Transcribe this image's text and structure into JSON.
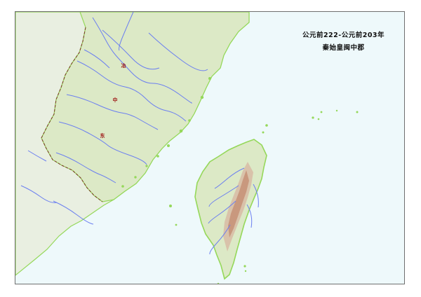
{
  "map": {
    "title_line1": "公元前222-公元前203年",
    "title_line2": "秦始皇闽中郡",
    "colors": {
      "sea": "#eef9fb",
      "land_fill": "#e9efe1",
      "highlight_land": "#dce9c6",
      "coast": "#95d85a",
      "river": "#6b7ff0",
      "boundary": "#7b3a28",
      "marker": "#9b0f0f"
    },
    "markers": [
      {
        "label": "冶"
      },
      {
        "label": "中"
      },
      {
        "label": "东"
      }
    ]
  }
}
